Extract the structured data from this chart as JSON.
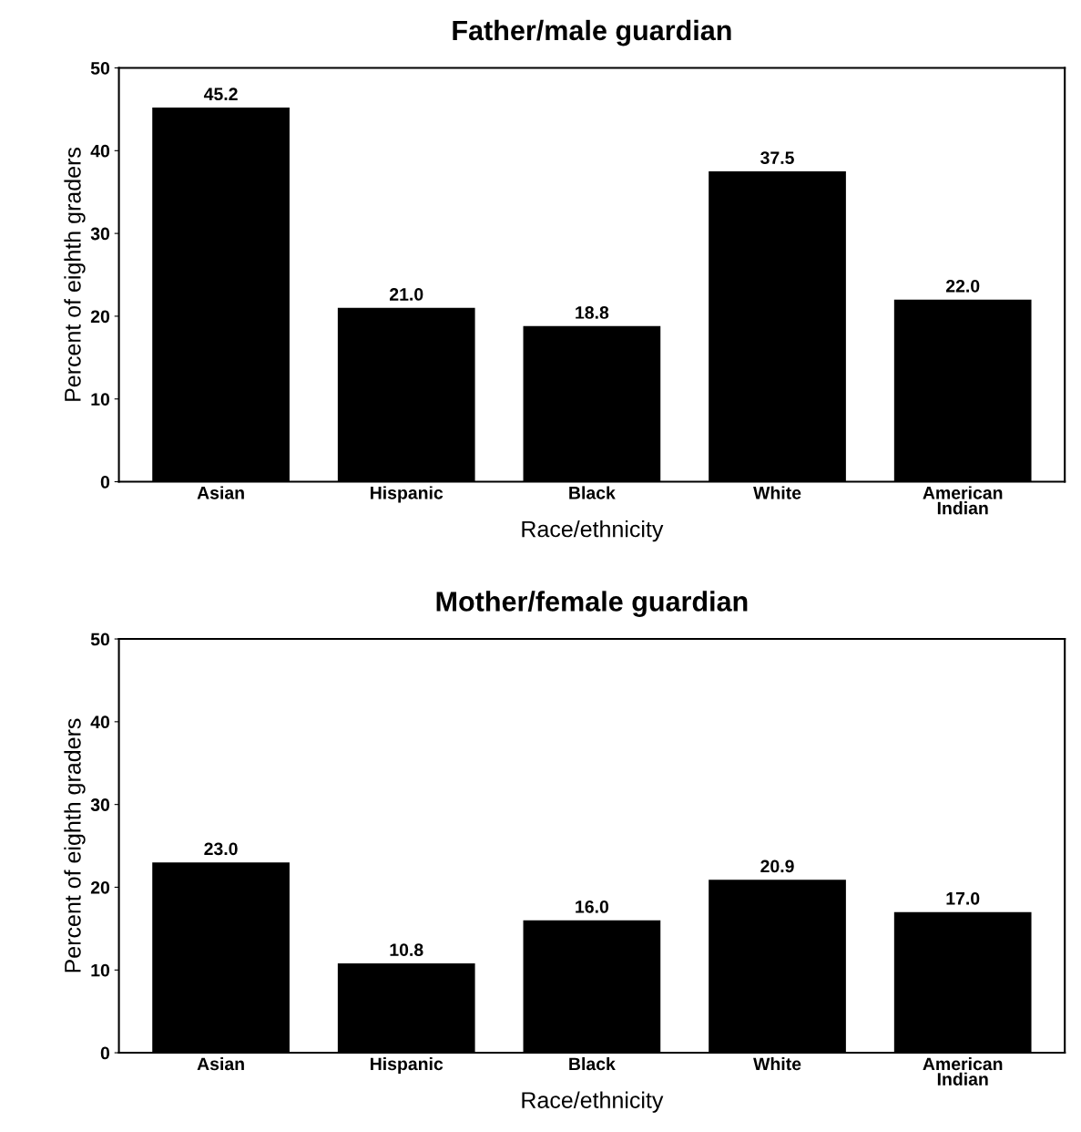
{
  "chart_data": [
    {
      "type": "bar",
      "title": "Father/male guardian",
      "xlabel": "Race/ethnicity",
      "ylabel": "Percent of eighth graders",
      "categories": [
        "Asian",
        "Hispanic",
        "Black",
        "White",
        "American\nIndian"
      ],
      "values": [
        45.2,
        21.0,
        18.8,
        37.5,
        22.0
      ],
      "value_labels": [
        "45.2",
        "21.0",
        "18.8",
        "37.5",
        "22.0"
      ],
      "color": "#000000",
      "ylim": [
        0,
        50
      ],
      "yticks": [
        0,
        10,
        20,
        30,
        40,
        50
      ],
      "grid": false
    },
    {
      "type": "bar",
      "title": "Mother/female guardian",
      "xlabel": "Race/ethnicity",
      "ylabel": "Percent of eighth graders",
      "categories": [
        "Asian",
        "Hispanic",
        "Black",
        "White",
        "American\nIndian"
      ],
      "values": [
        23.0,
        10.8,
        16.0,
        20.9,
        17.0
      ],
      "value_labels": [
        "23.0",
        "10.8",
        "16.0",
        "20.9",
        "17.0"
      ],
      "color": "#000000",
      "ylim": [
        0,
        50
      ],
      "yticks": [
        0,
        10,
        20,
        30,
        40,
        50
      ],
      "grid": false
    }
  ]
}
